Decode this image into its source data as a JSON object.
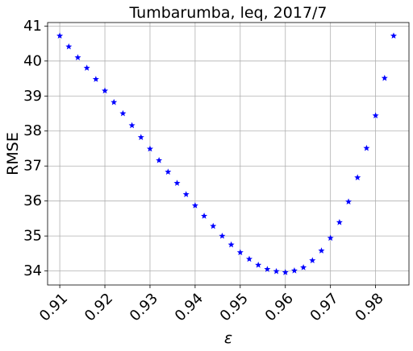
{
  "chart_data": {
    "type": "scatter",
    "title": "Tumbarumba, leq, 2017/7",
    "xlabel": "ε",
    "ylabel": "RMSE",
    "xlim": [
      0.9073,
      0.9874
    ],
    "ylim": [
      33.6,
      41.1
    ],
    "xticks": [
      "0.91",
      "0.92",
      "0.93",
      "0.94",
      "0.95",
      "0.96",
      "0.97",
      "0.98"
    ],
    "yticks": [
      "34",
      "35",
      "36",
      "37",
      "38",
      "39",
      "40",
      "41"
    ],
    "grid": true,
    "marker": "star",
    "marker_color": "#0000ff",
    "series": [
      {
        "x": [
          0.91,
          0.912,
          0.914,
          0.916,
          0.918,
          0.92,
          0.922,
          0.924,
          0.926,
          0.928,
          0.93,
          0.932,
          0.934,
          0.936,
          0.938,
          0.94,
          0.942,
          0.944,
          0.946,
          0.948,
          0.95,
          0.952,
          0.954,
          0.956,
          0.958,
          0.96,
          0.962,
          0.964,
          0.966,
          0.968,
          0.97,
          0.972,
          0.974,
          0.976,
          0.978,
          0.98,
          0.982,
          0.984
        ],
        "y": [
          40.72,
          40.41,
          40.1,
          39.8,
          39.48,
          39.15,
          38.82,
          38.5,
          38.16,
          37.82,
          37.49,
          37.16,
          36.83,
          36.51,
          36.19,
          35.87,
          35.57,
          35.28,
          35.0,
          34.75,
          34.53,
          34.34,
          34.17,
          34.05,
          33.99,
          33.96,
          34.01,
          34.1,
          34.3,
          34.58,
          34.94,
          35.39,
          35.98,
          36.67,
          37.51,
          38.44,
          39.51,
          40.72
        ]
      }
    ]
  }
}
